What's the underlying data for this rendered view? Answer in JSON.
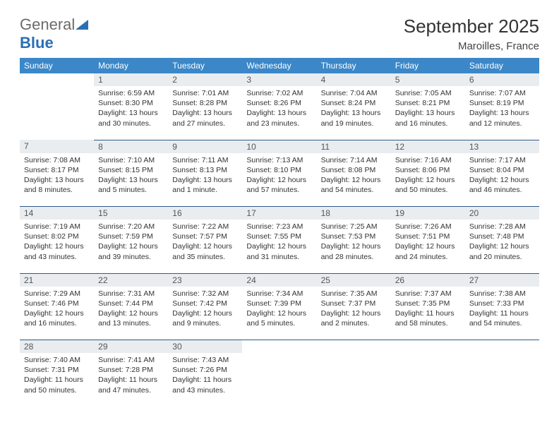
{
  "brand": {
    "name_a": "General",
    "name_b": "Blue"
  },
  "title": "September 2025",
  "location": "Maroilles, France",
  "colors": {
    "header_bg": "#3b87c8",
    "header_fg": "#ffffff",
    "daynum_bg": "#e9edf0",
    "row_border": "#2f5a8a",
    "brand_gray": "#6b6b6b",
    "brand_blue": "#2a6fb5"
  },
  "dayNames": [
    "Sunday",
    "Monday",
    "Tuesday",
    "Wednesday",
    "Thursday",
    "Friday",
    "Saturday"
  ],
  "weeks": [
    {
      "nums": [
        "",
        "1",
        "2",
        "3",
        "4",
        "5",
        "6"
      ],
      "cells": [
        null,
        {
          "sr": "Sunrise: 6:59 AM",
          "ss": "Sunset: 8:30 PM",
          "dl": "Daylight: 13 hours and 30 minutes."
        },
        {
          "sr": "Sunrise: 7:01 AM",
          "ss": "Sunset: 8:28 PM",
          "dl": "Daylight: 13 hours and 27 minutes."
        },
        {
          "sr": "Sunrise: 7:02 AM",
          "ss": "Sunset: 8:26 PM",
          "dl": "Daylight: 13 hours and 23 minutes."
        },
        {
          "sr": "Sunrise: 7:04 AM",
          "ss": "Sunset: 8:24 PM",
          "dl": "Daylight: 13 hours and 19 minutes."
        },
        {
          "sr": "Sunrise: 7:05 AM",
          "ss": "Sunset: 8:21 PM",
          "dl": "Daylight: 13 hours and 16 minutes."
        },
        {
          "sr": "Sunrise: 7:07 AM",
          "ss": "Sunset: 8:19 PM",
          "dl": "Daylight: 13 hours and 12 minutes."
        }
      ]
    },
    {
      "nums": [
        "7",
        "8",
        "9",
        "10",
        "11",
        "12",
        "13"
      ],
      "cells": [
        {
          "sr": "Sunrise: 7:08 AM",
          "ss": "Sunset: 8:17 PM",
          "dl": "Daylight: 13 hours and 8 minutes."
        },
        {
          "sr": "Sunrise: 7:10 AM",
          "ss": "Sunset: 8:15 PM",
          "dl": "Daylight: 13 hours and 5 minutes."
        },
        {
          "sr": "Sunrise: 7:11 AM",
          "ss": "Sunset: 8:13 PM",
          "dl": "Daylight: 13 hours and 1 minute."
        },
        {
          "sr": "Sunrise: 7:13 AM",
          "ss": "Sunset: 8:10 PM",
          "dl": "Daylight: 12 hours and 57 minutes."
        },
        {
          "sr": "Sunrise: 7:14 AM",
          "ss": "Sunset: 8:08 PM",
          "dl": "Daylight: 12 hours and 54 minutes."
        },
        {
          "sr": "Sunrise: 7:16 AM",
          "ss": "Sunset: 8:06 PM",
          "dl": "Daylight: 12 hours and 50 minutes."
        },
        {
          "sr": "Sunrise: 7:17 AM",
          "ss": "Sunset: 8:04 PM",
          "dl": "Daylight: 12 hours and 46 minutes."
        }
      ]
    },
    {
      "nums": [
        "14",
        "15",
        "16",
        "17",
        "18",
        "19",
        "20"
      ],
      "cells": [
        {
          "sr": "Sunrise: 7:19 AM",
          "ss": "Sunset: 8:02 PM",
          "dl": "Daylight: 12 hours and 43 minutes."
        },
        {
          "sr": "Sunrise: 7:20 AM",
          "ss": "Sunset: 7:59 PM",
          "dl": "Daylight: 12 hours and 39 minutes."
        },
        {
          "sr": "Sunrise: 7:22 AM",
          "ss": "Sunset: 7:57 PM",
          "dl": "Daylight: 12 hours and 35 minutes."
        },
        {
          "sr": "Sunrise: 7:23 AM",
          "ss": "Sunset: 7:55 PM",
          "dl": "Daylight: 12 hours and 31 minutes."
        },
        {
          "sr": "Sunrise: 7:25 AM",
          "ss": "Sunset: 7:53 PM",
          "dl": "Daylight: 12 hours and 28 minutes."
        },
        {
          "sr": "Sunrise: 7:26 AM",
          "ss": "Sunset: 7:51 PM",
          "dl": "Daylight: 12 hours and 24 minutes."
        },
        {
          "sr": "Sunrise: 7:28 AM",
          "ss": "Sunset: 7:48 PM",
          "dl": "Daylight: 12 hours and 20 minutes."
        }
      ]
    },
    {
      "nums": [
        "21",
        "22",
        "23",
        "24",
        "25",
        "26",
        "27"
      ],
      "cells": [
        {
          "sr": "Sunrise: 7:29 AM",
          "ss": "Sunset: 7:46 PM",
          "dl": "Daylight: 12 hours and 16 minutes."
        },
        {
          "sr": "Sunrise: 7:31 AM",
          "ss": "Sunset: 7:44 PM",
          "dl": "Daylight: 12 hours and 13 minutes."
        },
        {
          "sr": "Sunrise: 7:32 AM",
          "ss": "Sunset: 7:42 PM",
          "dl": "Daylight: 12 hours and 9 minutes."
        },
        {
          "sr": "Sunrise: 7:34 AM",
          "ss": "Sunset: 7:39 PM",
          "dl": "Daylight: 12 hours and 5 minutes."
        },
        {
          "sr": "Sunrise: 7:35 AM",
          "ss": "Sunset: 7:37 PM",
          "dl": "Daylight: 12 hours and 2 minutes."
        },
        {
          "sr": "Sunrise: 7:37 AM",
          "ss": "Sunset: 7:35 PM",
          "dl": "Daylight: 11 hours and 58 minutes."
        },
        {
          "sr": "Sunrise: 7:38 AM",
          "ss": "Sunset: 7:33 PM",
          "dl": "Daylight: 11 hours and 54 minutes."
        }
      ]
    },
    {
      "nums": [
        "28",
        "29",
        "30",
        "",
        "",
        "",
        ""
      ],
      "cells": [
        {
          "sr": "Sunrise: 7:40 AM",
          "ss": "Sunset: 7:31 PM",
          "dl": "Daylight: 11 hours and 50 minutes."
        },
        {
          "sr": "Sunrise: 7:41 AM",
          "ss": "Sunset: 7:28 PM",
          "dl": "Daylight: 11 hours and 47 minutes."
        },
        {
          "sr": "Sunrise: 7:43 AM",
          "ss": "Sunset: 7:26 PM",
          "dl": "Daylight: 11 hours and 43 minutes."
        },
        null,
        null,
        null,
        null
      ]
    }
  ]
}
